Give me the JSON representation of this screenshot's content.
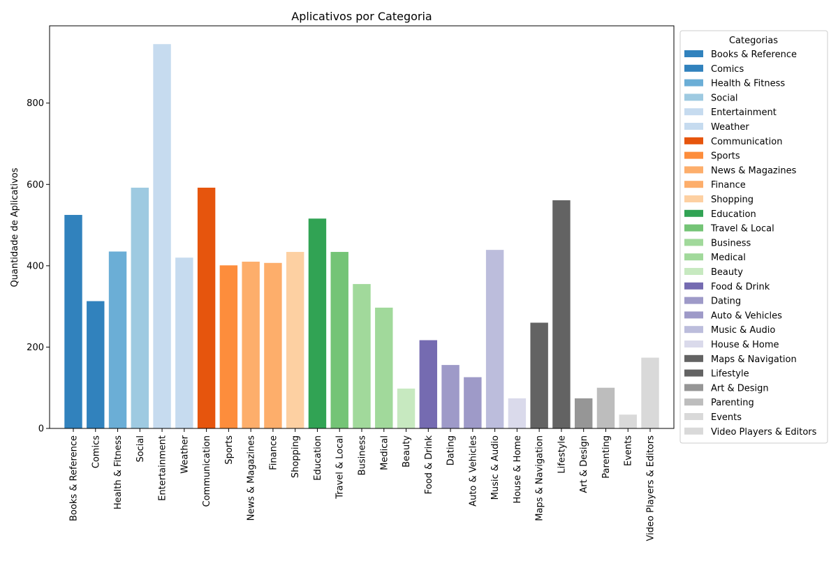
{
  "chart_data": {
    "type": "bar",
    "title": "Aplicativos por Categoria",
    "xlabel": "",
    "ylabel": "Quantidade de Aplicativos",
    "ylim": [
      0,
      990
    ],
    "yticks": [
      0,
      200,
      400,
      600,
      800
    ],
    "grid": false,
    "legend": {
      "title": "Categorias",
      "placement": "outside-right"
    },
    "categories": [
      "Books & Reference",
      "Comics",
      "Health & Fitness",
      "Social",
      "Entertainment",
      "Weather",
      "Communication",
      "Sports",
      "News & Magazines",
      "Finance",
      "Shopping",
      "Education",
      "Travel & Local",
      "Business",
      "Medical",
      "Beauty",
      "Food & Drink",
      "Dating",
      "Auto & Vehicles",
      "Music & Audio",
      "House & Home",
      "Maps & Navigation",
      "Lifestyle",
      "Art & Design",
      "Parenting",
      "Events",
      "Video Players & Editors"
    ],
    "values": [
      525,
      313,
      435,
      592,
      945,
      420,
      592,
      401,
      410,
      407,
      434,
      516,
      434,
      355,
      297,
      98,
      217,
      156,
      126,
      439,
      74,
      260,
      561,
      74,
      100,
      34,
      174
    ],
    "colors": [
      "#3182bd",
      "#3182bd",
      "#6baed6",
      "#9ecae1",
      "#c6dbef",
      "#c6dbef",
      "#e6550d",
      "#fd8d3c",
      "#fdae6b",
      "#fdae6b",
      "#fdd0a2",
      "#31a354",
      "#74c476",
      "#a1d99b",
      "#a1d99b",
      "#c7e9c0",
      "#756bb1",
      "#9e9ac8",
      "#9e9ac8",
      "#bcbddc",
      "#dadaeb",
      "#636363",
      "#636363",
      "#969696",
      "#bdbdbd",
      "#d9d9d9",
      "#d9d9d9"
    ]
  }
}
